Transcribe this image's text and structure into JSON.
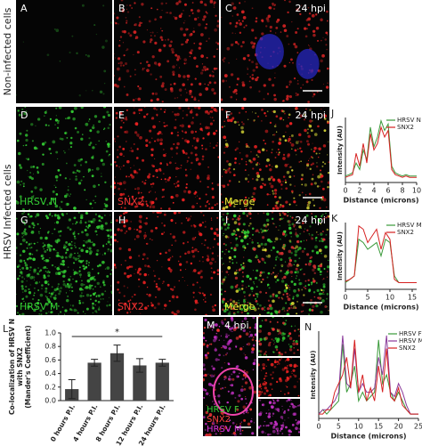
{
  "row_labels": [
    "Non-infected cells",
    "HRSV Infected cells"
  ],
  "panels": [
    {
      "letter": "A"
    },
    {
      "letter": "B"
    },
    {
      "letter": "C",
      "time": "24 hpi"
    },
    {
      "letter": "D",
      "channel": "HRSV N"
    },
    {
      "letter": "E",
      "channel": "SNX2"
    },
    {
      "letter": "F",
      "channel": "Merge",
      "time": "24 hpi"
    },
    {
      "letter": "G",
      "channel": "HRSV M"
    },
    {
      "letter": "H",
      "channel": "SNX2"
    },
    {
      "letter": "I",
      "channel": "Merge",
      "time": "24 hpi"
    },
    {
      "letter": "M",
      "time": "4 hpi",
      "channels": [
        "HRSV F",
        "SNX2",
        "HRSV M"
      ]
    }
  ],
  "chart_data": [
    {
      "type": "line",
      "label": "J",
      "xlabel": "Distance (microns)",
      "ylabel": "Intensity (AU)",
      "x": [
        0,
        0.5,
        1,
        1.5,
        2,
        2.5,
        3,
        3.5,
        4,
        4.5,
        5,
        5.5,
        6,
        6.5,
        7,
        7.5,
        8,
        8.5,
        9,
        9.5,
        10
      ],
      "xlim": [
        0,
        10
      ],
      "xticks": [
        0,
        2,
        4,
        6,
        8,
        10
      ],
      "ylim": [
        0,
        1
      ],
      "series": [
        {
          "name": "HRSV N",
          "color": "#3a9a3a",
          "values": [
            0.1,
            0.12,
            0.15,
            0.3,
            0.2,
            0.5,
            0.35,
            0.85,
            0.55,
            0.7,
            0.95,
            0.8,
            0.9,
            0.25,
            0.15,
            0.12,
            0.1,
            0.12,
            0.1,
            0.1,
            0.1
          ]
        },
        {
          "name": "SNX2",
          "color": "#d62020",
          "values": [
            0.08,
            0.1,
            0.12,
            0.45,
            0.25,
            0.6,
            0.3,
            0.75,
            0.5,
            0.6,
            0.85,
            0.7,
            0.8,
            0.2,
            0.12,
            0.1,
            0.08,
            0.1,
            0.08,
            0.08,
            0.08
          ]
        }
      ]
    },
    {
      "type": "line",
      "label": "K",
      "xlabel": "Distance (microns)",
      "ylabel": "Intensity (AU)",
      "x": [
        0,
        1,
        2,
        3,
        4,
        5,
        6,
        7,
        8,
        9,
        10,
        11,
        12,
        13,
        14,
        15,
        16
      ],
      "xlim": [
        0,
        16
      ],
      "xticks": [
        0,
        5,
        10,
        15
      ],
      "ylim": [
        0,
        1
      ],
      "series": [
        {
          "name": "HRSV M",
          "color": "#3a9a3a",
          "values": [
            0.1,
            0.15,
            0.2,
            0.75,
            0.7,
            0.6,
            0.65,
            0.7,
            0.5,
            0.75,
            0.7,
            0.2,
            0.1,
            0.1,
            0.1,
            0.1,
            0.1
          ]
        },
        {
          "name": "SNX2",
          "color": "#d62020",
          "values": [
            0.12,
            0.15,
            0.2,
            0.95,
            0.9,
            0.7,
            0.8,
            0.9,
            0.6,
            0.85,
            0.75,
            0.15,
            0.1,
            0.1,
            0.1,
            0.1,
            0.1
          ]
        }
      ]
    },
    {
      "type": "bar",
      "label": "L",
      "ylabel": [
        "Co-localization of HRSV N",
        "with SNX2",
        "(Mander's Coefficient)"
      ],
      "categories": [
        "0 hours P.I.",
        "4 hours P.I.",
        "8 hours P.I.",
        "12 hours P.I.",
        "24 hours P.I."
      ],
      "values": [
        0.17,
        0.56,
        0.7,
        0.52,
        0.56
      ],
      "errors": [
        0.14,
        0.05,
        0.12,
        0.1,
        0.05
      ],
      "color": "#444444",
      "ylim": [
        0,
        1
      ],
      "yticks": [
        {
          "value": 0,
          "label": "0.0"
        },
        0.2,
        0.4,
        0.6,
        0.8,
        {
          "value": 1,
          "label": "1.0"
        }
      ],
      "annotation": "*"
    },
    {
      "type": "line",
      "label": "N",
      "xlabel": "Distance (microns)",
      "ylabel": "Intensity (AU)",
      "x": [
        0,
        1,
        2,
        3,
        4,
        5,
        6,
        7,
        8,
        9,
        10,
        11,
        12,
        13,
        14,
        15,
        16,
        17,
        18,
        19,
        20,
        21,
        22,
        23,
        24,
        25
      ],
      "xlim": [
        0,
        25
      ],
      "xticks": [
        0,
        5,
        10,
        15,
        20,
        25
      ],
      "ylim": [
        0,
        1
      ],
      "series": [
        {
          "name": "HRSV F",
          "color": "#3a9a3a",
          "values": [
            0.05,
            0.1,
            0.05,
            0.1,
            0.15,
            0.2,
            0.85,
            0.3,
            0.4,
            0.6,
            0.2,
            0.3,
            0.2,
            0.25,
            0.3,
            0.9,
            0.4,
            0.5,
            0.3,
            0.2,
            0.3,
            0.2,
            0.1,
            0.05,
            0.05,
            0.05
          ]
        },
        {
          "name": "HRSV M",
          "color": "#8a3a9a",
          "values": [
            0.05,
            0.1,
            0.1,
            0.15,
            0.2,
            0.3,
            0.95,
            0.4,
            0.35,
            0.8,
            0.3,
            0.4,
            0.3,
            0.3,
            0.35,
            0.7,
            0.5,
            0.95,
            0.3,
            0.25,
            0.4,
            0.3,
            0.15,
            0.05,
            0.05,
            0.05
          ]
        },
        {
          "name": "SNX2",
          "color": "#d62020",
          "values": [
            0.05,
            0.05,
            0.1,
            0.1,
            0.3,
            0.4,
            0.5,
            0.7,
            0.35,
            0.9,
            0.3,
            0.5,
            0.2,
            0.35,
            0.2,
            0.6,
            0.3,
            0.8,
            0.25,
            0.2,
            0.35,
            0.15,
            0.1,
            0.05,
            0.05,
            0.05
          ]
        }
      ]
    }
  ]
}
